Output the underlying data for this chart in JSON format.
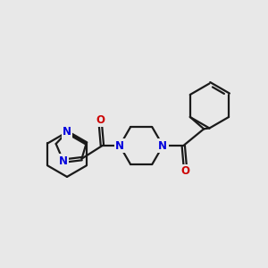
{
  "background_color": "#e8e8e8",
  "bond_color": "#1a1a1a",
  "n_color": "#0000dd",
  "o_color": "#cc0000",
  "line_width": 1.6,
  "double_sep": 0.055,
  "font_size": 8.5,
  "figsize": [
    3.0,
    3.0
  ],
  "dpi": 100,
  "xlim": [
    -0.5,
    6.5
  ],
  "ylim": [
    -0.2,
    6.5
  ]
}
